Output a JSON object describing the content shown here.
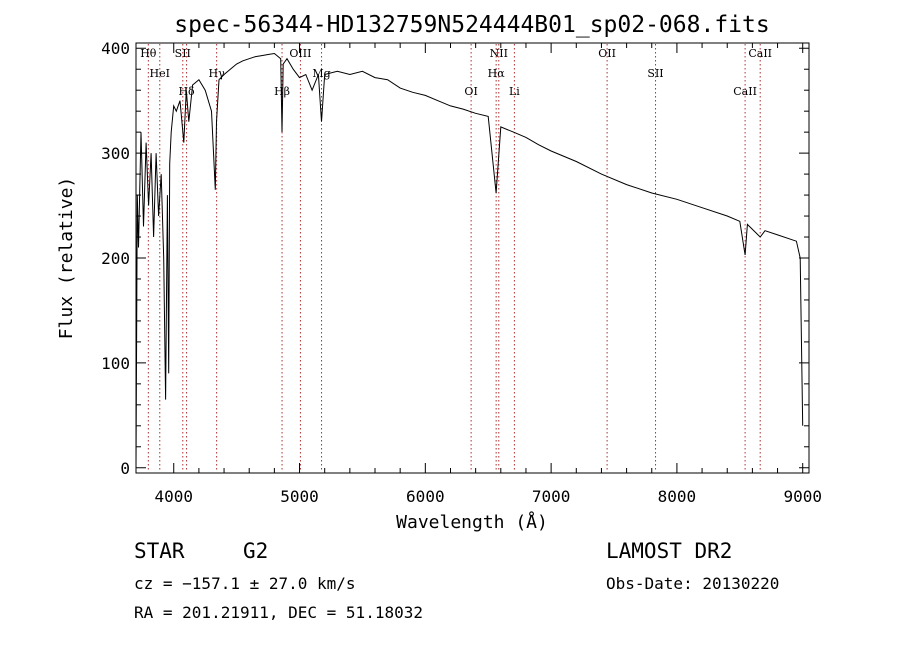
{
  "chart_data": {
    "type": "line",
    "title": "spec-56344-HD132759N524444B01_sp02-068.fits",
    "xlabel": "Wavelength (Å)",
    "ylabel": "Flux (relative)",
    "xlim": [
      3700,
      9050
    ],
    "ylim": [
      -5,
      405
    ],
    "x_ticks": [
      4000,
      5000,
      6000,
      7000,
      8000,
      9000
    ],
    "y_ticks": [
      0,
      100,
      200,
      300,
      400
    ],
    "grid": false,
    "series": [
      {
        "color": "#000000",
        "x": [
          3700,
          3710,
          3720,
          3740,
          3760,
          3780,
          3800,
          3820,
          3840,
          3860,
          3880,
          3900,
          3920,
          3935,
          3950,
          3960,
          3968,
          3980,
          4000,
          4020,
          4050,
          4080,
          4100,
          4120,
          4150,
          4200,
          4250,
          4300,
          4330,
          4340,
          4360,
          4400,
          4450,
          4500,
          4550,
          4600,
          4650,
          4700,
          4750,
          4800,
          4850,
          4861,
          4870,
          4900,
          4950,
          5000,
          5050,
          5100,
          5150,
          5175,
          5200,
          5300,
          5400,
          5500,
          5600,
          5700,
          5800,
          5900,
          6000,
          6100,
          6200,
          6300,
          6400,
          6500,
          6563,
          6600,
          6700,
          6800,
          6900,
          7000,
          7200,
          7400,
          7600,
          7800,
          8000,
          8200,
          8400,
          8500,
          8542,
          8560,
          8662,
          8700,
          8800,
          8950,
          8980,
          9000
        ],
        "y": [
          0,
          260,
          210,
          320,
          230,
          310,
          250,
          300,
          220,
          300,
          240,
          280,
          200,
          65,
          260,
          90,
          290,
          320,
          345,
          340,
          350,
          310,
          360,
          330,
          365,
          370,
          360,
          340,
          265,
          330,
          370,
          375,
          380,
          385,
          388,
          390,
          392,
          393,
          394,
          395,
          390,
          320,
          385,
          390,
          380,
          372,
          375,
          360,
          375,
          330,
          375,
          378,
          375,
          378,
          372,
          370,
          362,
          358,
          355,
          350,
          345,
          342,
          338,
          335,
          262,
          325,
          320,
          315,
          308,
          302,
          292,
          280,
          270,
          262,
          256,
          248,
          240,
          235,
          203,
          232,
          220,
          226,
          222,
          216,
          200,
          40
        ]
      }
    ],
    "line_markers": [
      {
        "label": "Hθ",
        "x": 3798
      },
      {
        "label": "HeI",
        "x": 3889
      },
      {
        "label": "Hδ",
        "x": 4102
      },
      {
        "label": "SII",
        "x": 4072
      },
      {
        "label": "Hγ",
        "x": 4341
      },
      {
        "label": "Hβ",
        "x": 4861
      },
      {
        "label": "OIII",
        "x": 5007
      },
      {
        "label": "Mg",
        "x": 5175
      },
      {
        "label": "OI",
        "x": 6364
      },
      {
        "label": "NII",
        "x": 6584
      },
      {
        "label": "Hα",
        "x": 6563
      },
      {
        "label": "Li",
        "x": 6708
      },
      {
        "label": "OII",
        "x": 7445
      },
      {
        "label": "SII",
        "x": 7830
      },
      {
        "label": "CaII",
        "x": 8542
      },
      {
        "label": "CaII",
        "x": 8662
      }
    ]
  },
  "info": {
    "class_type": "STAR",
    "subclass": "G2",
    "survey": "LAMOST DR2",
    "redshift": "cz = −157.1 ± 27.0 km/s",
    "obs_date": "Obs-Date: 20130220",
    "coords": "RA = 201.21911, DEC =  51.18032"
  },
  "colors": {
    "marker_line": "#b03030",
    "spectrum": "#000000"
  }
}
